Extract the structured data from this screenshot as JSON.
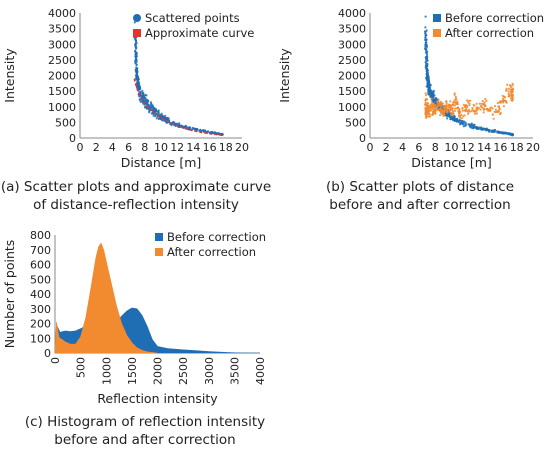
{
  "colors": {
    "blue": "#1f6eb5",
    "orange": "#f28a30",
    "red": "#e3342f",
    "axis": "#8a8a8a",
    "grid": "#d9d9d9"
  },
  "chart_data": [
    {
      "id": "a",
      "type": "scatter",
      "caption_lines": [
        "(a) Scatter plots and approximate curve",
        "of distance-reflection intensity"
      ],
      "xlabel": "Distance [m]",
      "ylabel": "Intensity",
      "xlim": [
        0,
        20
      ],
      "ylim": [
        0,
        4000
      ],
      "xticks": [
        "0",
        "2",
        "4",
        "6",
        "8",
        "10",
        "12",
        "14",
        "16",
        "18",
        "20"
      ],
      "yticks": [
        "0",
        "500",
        "1000",
        "1500",
        "2000",
        "2500",
        "3000",
        "3500",
        "4000"
      ],
      "legend_position": "top-right",
      "series": [
        {
          "name": "Scattered points",
          "kind": "points",
          "color": "#1f6eb5",
          "points": [
            [
              6.8,
              3400
            ],
            [
              6.9,
              2950
            ],
            [
              6.9,
              2600
            ],
            [
              7.0,
              2300
            ],
            [
              7.0,
              2000
            ],
            [
              7.1,
              1800
            ],
            [
              7.2,
              1650
            ],
            [
              7.3,
              1550
            ],
            [
              7.5,
              1400
            ],
            [
              7.7,
              1300
            ],
            [
              8.0,
              1200
            ],
            [
              8.3,
              1100
            ],
            [
              8.6,
              1000
            ],
            [
              9.0,
              900
            ],
            [
              9.5,
              780
            ],
            [
              10.0,
              680
            ],
            [
              10.5,
              600
            ],
            [
              11.0,
              520
            ],
            [
              12.0,
              420
            ],
            [
              13.0,
              340
            ],
            [
              14.0,
              280
            ],
            [
              15.0,
              230
            ],
            [
              16.0,
              180
            ],
            [
              17.0,
              140
            ],
            [
              17.5,
              110
            ]
          ]
        },
        {
          "name": "Approximate curve",
          "kind": "line",
          "color": "#e3342f",
          "points": [
            [
              6.7,
              1900
            ],
            [
              7,
              1600
            ],
            [
              7.5,
              1300
            ],
            [
              8,
              1100
            ],
            [
              9,
              850
            ],
            [
              10,
              650
            ],
            [
              11,
              500
            ],
            [
              12,
              390
            ],
            [
              13,
              300
            ],
            [
              14,
              230
            ],
            [
              15,
              180
            ],
            [
              16,
              140
            ],
            [
              17,
              110
            ],
            [
              17.5,
              95
            ]
          ]
        }
      ]
    },
    {
      "id": "b",
      "type": "scatter",
      "caption_lines": [
        "(b) Scatter plots of distance",
        "before and after correction"
      ],
      "xlabel": "Distance [m]",
      "ylabel": "Intensity",
      "xlim": [
        0,
        20
      ],
      "ylim": [
        0,
        4000
      ],
      "xticks": [
        "0",
        "2",
        "4",
        "6",
        "8",
        "10",
        "12",
        "14",
        "16",
        "18",
        "20"
      ],
      "yticks": [
        "0",
        "500",
        "1000",
        "1500",
        "2000",
        "2500",
        "3000",
        "3500",
        "4000"
      ],
      "legend_position": "top-right",
      "series": [
        {
          "name": "Before correction",
          "kind": "points",
          "color": "#1f6eb5",
          "points": [
            [
              6.8,
              3400
            ],
            [
              6.9,
              2950
            ],
            [
              6.9,
              2600
            ],
            [
              7.0,
              2300
            ],
            [
              7.0,
              2000
            ],
            [
              7.1,
              1800
            ],
            [
              7.2,
              1650
            ],
            [
              7.3,
              1550
            ],
            [
              7.5,
              1400
            ],
            [
              7.7,
              1300
            ],
            [
              8.0,
              1200
            ],
            [
              8.3,
              1100
            ],
            [
              8.6,
              1000
            ],
            [
              9.0,
              900
            ],
            [
              9.5,
              780
            ],
            [
              10.0,
              680
            ],
            [
              10.5,
              600
            ],
            [
              11.0,
              520
            ],
            [
              12.0,
              420
            ],
            [
              13.0,
              340
            ],
            [
              14.0,
              280
            ],
            [
              15.0,
              230
            ],
            [
              16.0,
              180
            ],
            [
              17.0,
              140
            ],
            [
              17.5,
              110
            ]
          ]
        },
        {
          "name": "After correction",
          "kind": "points",
          "color": "#f28a30",
          "points": [
            [
              6.8,
              1300
            ],
            [
              6.9,
              700
            ],
            [
              7.0,
              1100
            ],
            [
              7.2,
              800
            ],
            [
              7.5,
              1000
            ],
            [
              8.0,
              900
            ],
            [
              8.5,
              1100
            ],
            [
              9.0,
              850
            ],
            [
              9.5,
              1000
            ],
            [
              10.0,
              900
            ],
            [
              10.5,
              1200
            ],
            [
              11.0,
              800
            ],
            [
              12.0,
              1000
            ],
            [
              13.0,
              900
            ],
            [
              14.0,
              1100
            ],
            [
              15.0,
              800
            ],
            [
              16.0,
              1000
            ],
            [
              17.0,
              1500
            ],
            [
              17.5,
              1400
            ]
          ]
        }
      ]
    },
    {
      "id": "c",
      "type": "area",
      "caption_lines": [
        "(c) Histogram of reflection intensity",
        "before and after correction"
      ],
      "xlabel": "Reflection intensity",
      "ylabel": "Number of points",
      "xlim": [
        0,
        4000
      ],
      "ylim": [
        0,
        800
      ],
      "xticks": [
        "0",
        "500",
        "1000",
        "1500",
        "2000",
        "2500",
        "3000",
        "3500",
        "4000"
      ],
      "yticks": [
        "0",
        "100",
        "200",
        "300",
        "400",
        "500",
        "600",
        "700",
        "800"
      ],
      "legend_position": "top-right",
      "series": [
        {
          "name": "Before correction",
          "color": "#1f6eb5",
          "points": [
            [
              0,
              0
            ],
            [
              30,
              190
            ],
            [
              100,
              140
            ],
            [
              200,
              150
            ],
            [
              300,
              145
            ],
            [
              400,
              150
            ],
            [
              500,
              165
            ],
            [
              600,
              185
            ],
            [
              700,
              215
            ],
            [
              800,
              225
            ],
            [
              900,
              210
            ],
            [
              1000,
              160
            ],
            [
              1100,
              175
            ],
            [
              1200,
              210
            ],
            [
              1300,
              250
            ],
            [
              1400,
              285
            ],
            [
              1500,
              305
            ],
            [
              1600,
              300
            ],
            [
              1700,
              255
            ],
            [
              1800,
              180
            ],
            [
              1900,
              90
            ],
            [
              2000,
              45
            ],
            [
              2200,
              30
            ],
            [
              2500,
              22
            ],
            [
              2800,
              15
            ],
            [
              3000,
              10
            ],
            [
              3200,
              6
            ],
            [
              3400,
              3
            ],
            [
              3600,
              1
            ],
            [
              3800,
              0
            ],
            [
              4000,
              0
            ]
          ]
        },
        {
          "name": "After correction",
          "color": "#f28a30",
          "points": [
            [
              0,
              0
            ],
            [
              30,
              210
            ],
            [
              80,
              105
            ],
            [
              200,
              75
            ],
            [
              300,
              60
            ],
            [
              400,
              60
            ],
            [
              500,
              110
            ],
            [
              600,
              240
            ],
            [
              700,
              440
            ],
            [
              800,
              650
            ],
            [
              850,
              720
            ],
            [
              900,
              745
            ],
            [
              950,
              700
            ],
            [
              1000,
              620
            ],
            [
              1100,
              470
            ],
            [
              1200,
              320
            ],
            [
              1300,
              200
            ],
            [
              1400,
              120
            ],
            [
              1500,
              70
            ],
            [
              1600,
              35
            ],
            [
              1700,
              18
            ],
            [
              1800,
              8
            ],
            [
              2000,
              0
            ]
          ]
        }
      ]
    }
  ]
}
